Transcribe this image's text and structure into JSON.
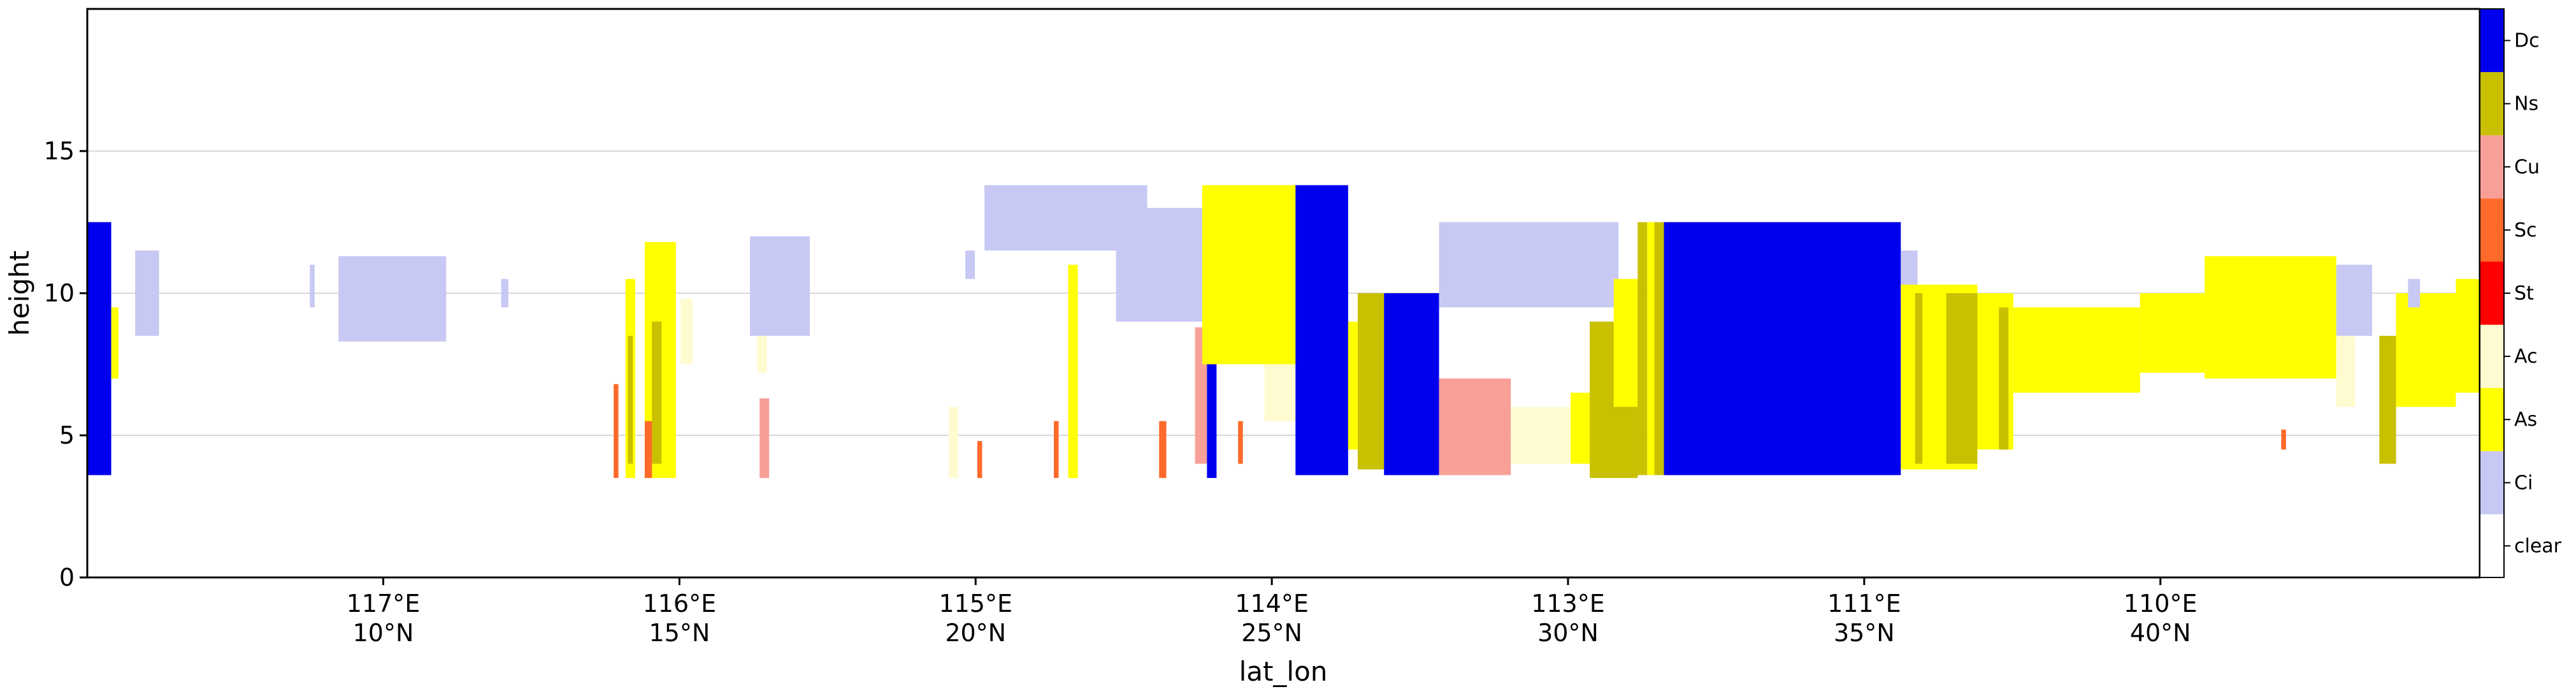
{
  "chart_data": {
    "type": "heatmap",
    "xlabel": "lat_lon",
    "ylabel": "height",
    "ylim": [
      0,
      20
    ],
    "y_ticks": [
      "0",
      "5",
      "10",
      "15"
    ],
    "x_ticks": [
      {
        "lon": "117°E",
        "lat": "10°N",
        "pos": 0.1237
      },
      {
        "lon": "116°E",
        "lat": "15°N",
        "pos": 0.2475
      },
      {
        "lon": "115°E",
        "lat": "20°N",
        "pos": 0.3713
      },
      {
        "lon": "114°E",
        "lat": "25°N",
        "pos": 0.4951
      },
      {
        "lon": "113°E",
        "lat": "30°N",
        "pos": 0.6189
      },
      {
        "lon": "111°E",
        "lat": "35°N",
        "pos": 0.7427
      },
      {
        "lon": "110°E",
        "lat": "40°N",
        "pos": 0.8665
      }
    ],
    "grid": "horizontal",
    "colorbar": [
      {
        "label": "clear",
        "color": "#ffffff"
      },
      {
        "label": "Ci",
        "color": "#c8c8f4"
      },
      {
        "label": "As",
        "color": "#ffff00"
      },
      {
        "label": "Ac",
        "color": "#fffbd0"
      },
      {
        "label": "St",
        "color": "#ff0000"
      },
      {
        "label": "Sc",
        "color": "#ff6a2a"
      },
      {
        "label": "Cu",
        "color": "#f8a098"
      },
      {
        "label": "Ns",
        "color": "#c8c000"
      },
      {
        "label": "Dc",
        "color": "#0000ee"
      }
    ],
    "cloud_regions": [
      {
        "type": "Dc",
        "x0": 0.0,
        "x1": 0.01,
        "y0": 3.6,
        "y1": 12.5
      },
      {
        "type": "As",
        "x0": 0.01,
        "x1": 0.013,
        "y0": 7.0,
        "y1": 9.5
      },
      {
        "type": "Ci",
        "x0": 0.02,
        "x1": 0.03,
        "y0": 8.5,
        "y1": 11.5
      },
      {
        "type": "Ci",
        "x0": 0.093,
        "x1": 0.095,
        "y0": 9.5,
        "y1": 11.0
      },
      {
        "type": "Ci",
        "x0": 0.105,
        "x1": 0.15,
        "y0": 8.3,
        "y1": 11.3
      },
      {
        "type": "Ci",
        "x0": 0.173,
        "x1": 0.176,
        "y0": 9.5,
        "y1": 10.5
      },
      {
        "type": "Sc",
        "x0": 0.22,
        "x1": 0.222,
        "y0": 3.5,
        "y1": 6.8
      },
      {
        "type": "As",
        "x0": 0.225,
        "x1": 0.229,
        "y0": 3.5,
        "y1": 10.5
      },
      {
        "type": "Ns",
        "x0": 0.226,
        "x1": 0.228,
        "y0": 4.0,
        "y1": 8.5
      },
      {
        "type": "As",
        "x0": 0.233,
        "x1": 0.246,
        "y0": 3.5,
        "y1": 11.8
      },
      {
        "type": "Ns",
        "x0": 0.236,
        "x1": 0.24,
        "y0": 4.0,
        "y1": 9.0
      },
      {
        "type": "Sc",
        "x0": 0.233,
        "x1": 0.236,
        "y0": 3.5,
        "y1": 5.5
      },
      {
        "type": "Ac",
        "x0": 0.248,
        "x1": 0.253,
        "y0": 7.5,
        "y1": 9.8
      },
      {
        "type": "Ci",
        "x0": 0.277,
        "x1": 0.302,
        "y0": 8.5,
        "y1": 12.0
      },
      {
        "type": "Ac",
        "x0": 0.28,
        "x1": 0.284,
        "y0": 7.2,
        "y1": 8.5
      },
      {
        "type": "Cu",
        "x0": 0.281,
        "x1": 0.285,
        "y0": 3.5,
        "y1": 6.3
      },
      {
        "type": "Ac",
        "x0": 0.36,
        "x1": 0.364,
        "y0": 3.5,
        "y1": 6.0
      },
      {
        "type": "Sc",
        "x0": 0.372,
        "x1": 0.374,
        "y0": 3.5,
        "y1": 4.8
      },
      {
        "type": "Ci",
        "x0": 0.367,
        "x1": 0.371,
        "y0": 10.5,
        "y1": 11.5
      },
      {
        "type": "Ci",
        "x0": 0.375,
        "x1": 0.443,
        "y0": 11.5,
        "y1": 13.8
      },
      {
        "type": "As",
        "x0": 0.41,
        "x1": 0.414,
        "y0": 3.5,
        "y1": 11.0
      },
      {
        "type": "Sc",
        "x0": 0.404,
        "x1": 0.406,
        "y0": 3.5,
        "y1": 5.5
      },
      {
        "type": "Ci",
        "x0": 0.43,
        "x1": 0.47,
        "y0": 9.0,
        "y1": 13.0
      },
      {
        "type": "Sc",
        "x0": 0.448,
        "x1": 0.451,
        "y0": 3.5,
        "y1": 5.5
      },
      {
        "type": "Cu",
        "x0": 0.463,
        "x1": 0.468,
        "y0": 4.0,
        "y1": 8.8
      },
      {
        "type": "Dc",
        "x0": 0.468,
        "x1": 0.472,
        "y0": 3.5,
        "y1": 8.8
      },
      {
        "type": "As",
        "x0": 0.466,
        "x1": 0.505,
        "y0": 7.5,
        "y1": 13.8
      },
      {
        "type": "Ac",
        "x0": 0.492,
        "x1": 0.505,
        "y0": 5.5,
        "y1": 7.5
      },
      {
        "type": "Sc",
        "x0": 0.481,
        "x1": 0.483,
        "y0": 4.0,
        "y1": 5.5
      },
      {
        "type": "Dc",
        "x0": 0.505,
        "x1": 0.527,
        "y0": 3.6,
        "y1": 13.8
      },
      {
        "type": "Ns",
        "x0": 0.531,
        "x1": 0.542,
        "y0": 3.8,
        "y1": 10.0
      },
      {
        "type": "As",
        "x0": 0.527,
        "x1": 0.531,
        "y0": 4.5,
        "y1": 9.0
      },
      {
        "type": "Dc",
        "x0": 0.542,
        "x1": 0.565,
        "y0": 3.6,
        "y1": 10.0
      },
      {
        "type": "Ci",
        "x0": 0.565,
        "x1": 0.64,
        "y0": 9.5,
        "y1": 12.5
      },
      {
        "type": "Cu",
        "x0": 0.565,
        "x1": 0.595,
        "y0": 3.6,
        "y1": 7.0
      },
      {
        "type": "Ac",
        "x0": 0.595,
        "x1": 0.627,
        "y0": 4.0,
        "y1": 6.0
      },
      {
        "type": "As",
        "x0": 0.62,
        "x1": 0.628,
        "y0": 4.0,
        "y1": 6.5
      },
      {
        "type": "Ns",
        "x0": 0.628,
        "x1": 0.648,
        "y0": 3.5,
        "y1": 9.0
      },
      {
        "type": "As",
        "x0": 0.638,
        "x1": 0.648,
        "y0": 6.0,
        "y1": 10.5
      },
      {
        "type": "Ns",
        "x0": 0.648,
        "x1": 0.652,
        "y0": 3.6,
        "y1": 12.5
      },
      {
        "type": "As",
        "x0": 0.652,
        "x1": 0.655,
        "y0": 3.6,
        "y1": 12.5
      },
      {
        "type": "Ns",
        "x0": 0.655,
        "x1": 0.659,
        "y0": 3.6,
        "y1": 12.5
      },
      {
        "type": "Dc",
        "x0": 0.659,
        "x1": 0.758,
        "y0": 3.6,
        "y1": 12.5
      },
      {
        "type": "Ci",
        "x0": 0.758,
        "x1": 0.765,
        "y0": 9.5,
        "y1": 11.5
      },
      {
        "type": "As",
        "x0": 0.758,
        "x1": 0.79,
        "y0": 3.8,
        "y1": 10.3
      },
      {
        "type": "Ns",
        "x0": 0.764,
        "x1": 0.767,
        "y0": 4.0,
        "y1": 10.0
      },
      {
        "type": "Ns",
        "x0": 0.777,
        "x1": 0.79,
        "y0": 4.0,
        "y1": 10.0
      },
      {
        "type": "As",
        "x0": 0.79,
        "x1": 0.805,
        "y0": 4.5,
        "y1": 10.0
      },
      {
        "type": "Ns",
        "x0": 0.799,
        "x1": 0.803,
        "y0": 4.5,
        "y1": 9.5
      },
      {
        "type": "As",
        "x0": 0.805,
        "x1": 0.858,
        "y0": 6.5,
        "y1": 9.5
      },
      {
        "type": "As",
        "x0": 0.858,
        "x1": 0.885,
        "y0": 7.2,
        "y1": 10.0
      },
      {
        "type": "As",
        "x0": 0.885,
        "x1": 0.94,
        "y0": 7.0,
        "y1": 11.3
      },
      {
        "type": "Ci",
        "x0": 0.94,
        "x1": 0.955,
        "y0": 8.5,
        "y1": 11.0
      },
      {
        "type": "Ac",
        "x0": 0.94,
        "x1": 0.948,
        "y0": 6.0,
        "y1": 8.5
      },
      {
        "type": "Sc",
        "x0": 0.917,
        "x1": 0.919,
        "y0": 4.5,
        "y1": 5.2
      },
      {
        "type": "Ns",
        "x0": 0.958,
        "x1": 0.965,
        "y0": 4.0,
        "y1": 8.5
      },
      {
        "type": "As",
        "x0": 0.965,
        "x1": 0.99,
        "y0": 6.0,
        "y1": 10.0
      },
      {
        "type": "Ci",
        "x0": 0.97,
        "x1": 0.975,
        "y0": 9.5,
        "y1": 10.5
      },
      {
        "type": "As",
        "x0": 0.99,
        "x1": 1.0,
        "y0": 6.5,
        "y1": 10.5
      }
    ]
  }
}
